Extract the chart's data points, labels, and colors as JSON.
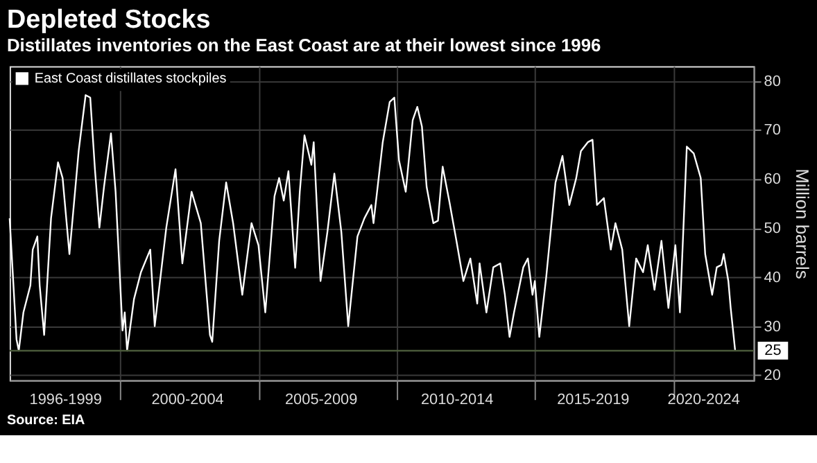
{
  "chart_data": {
    "type": "line",
    "title": "Depleted Stocks",
    "subtitle": "Distillates inventories on the East Coast are at their lowest since 1996",
    "ylabel": "Million barrels",
    "legend": "top left",
    "grid": true,
    "line_style": "solid",
    "marker": "none",
    "xlim": [
      "1996-01",
      "2022-12"
    ],
    "xticks": [
      {
        "value": "1998-01",
        "label": "1996-1999"
      },
      {
        "value": "2000-01",
        "label": null
      },
      {
        "value": "2002-06",
        "label": "2000-2004"
      },
      {
        "value": "2005-01",
        "label": null
      },
      {
        "value": "2007-04",
        "label": "2005-2009"
      },
      {
        "value": "2010-01",
        "label": null
      },
      {
        "value": "2012-03",
        "label": "2010-2014"
      },
      {
        "value": "2015-01",
        "label": null
      },
      {
        "value": "2017-02",
        "label": "2015-2019"
      },
      {
        "value": "2020-01",
        "label": null
      },
      {
        "value": "2021-02",
        "label": "2020-2024"
      }
    ],
    "ylim": [
      19,
      83
    ],
    "yticks": [
      20,
      30,
      40,
      50,
      60,
      70,
      80
    ],
    "ref_lines": [
      {
        "axis": "y",
        "value": 25,
        "label": "25",
        "color": "#4a5a3a"
      }
    ],
    "annotations": [
      "Source: EIA"
    ],
    "x": [
      "1996-01",
      "1996-04",
      "1996-05",
      "1996-07",
      "1996-10",
      "1996-11",
      "1997-01",
      "1997-02",
      "1997-04",
      "1997-07",
      "1997-10",
      "1997-12",
      "1998-03",
      "1998-07",
      "1998-10",
      "1998-12",
      "1999-02",
      "1999-04",
      "1999-06",
      "1999-09",
      "1999-11",
      "2000-02",
      "2000-03",
      "2000-04",
      "2000-07",
      "2000-10",
      "2001-02",
      "2001-04",
      "2001-09",
      "2002-01",
      "2002-04",
      "2002-08",
      "2002-12",
      "2003-04",
      "2003-05",
      "2003-08",
      "2003-11",
      "2004-02",
      "2004-06",
      "2004-10",
      "2005-01",
      "2005-04",
      "2005-08",
      "2005-10",
      "2005-12",
      "2006-02",
      "2006-05",
      "2006-07",
      "2006-09",
      "2006-12",
      "2007-01",
      "2007-04",
      "2007-07",
      "2007-10",
      "2008-01",
      "2008-04",
      "2008-08",
      "2008-11",
      "2009-02",
      "2009-03",
      "2009-07",
      "2009-10",
      "2009-12",
      "2010-02",
      "2010-05",
      "2010-08",
      "2010-10",
      "2010-12",
      "2011-02",
      "2011-05",
      "2011-07",
      "2011-09",
      "2011-12",
      "2012-03",
      "2012-06",
      "2012-09",
      "2012-12",
      "2013-01",
      "2013-04",
      "2013-07",
      "2013-10",
      "2013-12",
      "2014-02",
      "2014-04",
      "2014-08",
      "2014-10",
      "2014-12",
      "2015-01",
      "2015-03",
      "2015-06",
      "2015-10",
      "2016-01",
      "2016-04",
      "2016-07",
      "2016-09",
      "2016-12",
      "2017-02",
      "2017-04",
      "2017-07",
      "2017-10",
      "2017-12",
      "2018-03",
      "2018-06",
      "2018-09",
      "2018-12",
      "2019-02",
      "2019-05",
      "2019-08",
      "2019-11",
      "2020-02",
      "2020-04",
      "2020-07",
      "2020-10",
      "2021-01",
      "2021-03",
      "2021-06",
      "2021-08",
      "2021-10",
      "2021-11",
      "2022-01",
      "2022-02",
      "2022-04"
    ],
    "series": [
      {
        "name": "East Coast distillates stockpiles",
        "color": "#ffffff",
        "values": [
          52,
          27.3,
          25,
          32.8,
          38.3,
          45.6,
          48.3,
          38.3,
          28.2,
          52,
          63.4,
          60.2,
          44.7,
          65.7,
          77.1,
          76.6,
          62,
          50.1,
          58.4,
          69.3,
          57.4,
          29.1,
          32.8,
          25,
          35.5,
          41,
          45.6,
          30,
          50.1,
          62,
          42.8,
          57.4,
          51,
          28.2,
          26.8,
          47.4,
          59.3,
          51,
          36.4,
          51,
          46.5,
          32.8,
          56.5,
          60.2,
          55.6,
          61.6,
          41.9,
          57.4,
          68.9,
          62.9,
          67.5,
          39.2,
          49.2,
          61.1,
          49.2,
          30,
          48.3,
          52,
          54.7,
          51,
          67.5,
          75.7,
          76.6,
          63.8,
          57.4,
          72,
          74.7,
          70.7,
          58.4,
          51,
          51.5,
          62.5,
          55.2,
          47.4,
          39.2,
          43.8,
          34.6,
          42.8,
          32.8,
          42,
          42.8,
          36.4,
          27.8,
          32.8,
          42,
          43.8,
          36.4,
          39.2,
          27.8,
          40.1,
          59.3,
          64.7,
          54.7,
          60.2,
          65.7,
          67.5,
          68,
          54.7,
          56.1,
          45.6,
          51,
          45.6,
          30,
          43.8,
          41,
          46.5,
          37.4,
          47.4,
          33.7,
          46.5,
          32.8,
          66.6,
          65.2,
          60.2,
          44.7,
          36.4,
          42,
          42.5,
          44.7,
          39.2,
          33.7,
          25
        ]
      }
    ]
  }
}
